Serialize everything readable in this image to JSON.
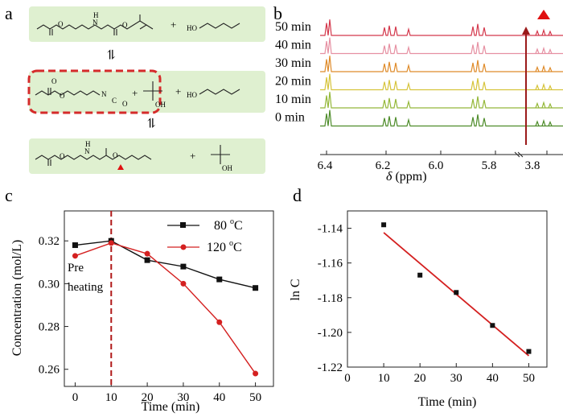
{
  "panels": {
    "a": {
      "letter": "a",
      "scheme_row1": {
        "reactant": "acrylate-ethyl-Boc-carbamate",
        "plus": "+",
        "alcohol": "HO"
      },
      "scheme_row2": {
        "isocyanate_N": "N",
        "isocyanate_C": "C",
        "isocyanate_O": "O",
        "plus1": "+",
        "tbutanol_OH": "OH",
        "plus2": "+",
        "alcohol": "HO"
      },
      "scheme_row3": {
        "product": "acrylate-ethyl-pentyl-carbamate",
        "plus": "+",
        "tbutanol_OH": "OH"
      },
      "equilibrium_symbol": "⇌",
      "colors": {
        "box_fill": "#dff0d0",
        "dash_box": "#d52b2b",
        "marker": "#e01010"
      }
    },
    "b": {
      "letter": "b",
      "traces": [
        "50 min",
        "40 min",
        "30 min",
        "20 min",
        "10 min",
        "0 min"
      ],
      "x_ticks": [
        "6.4",
        "6.2",
        "6.0",
        "5.8",
        "3.8"
      ],
      "x_label_symbol": "δ",
      "x_label_unit": " (ppm)",
      "colors": [
        "#d4384c",
        "#e690a2",
        "#df8b2a",
        "#d6c43c",
        "#95b83a",
        "#4e8c2a"
      ],
      "arrow_color": "#9b1a1a",
      "marker_color": "#e01010"
    }
  },
  "chart_data": [
    {
      "panel": "c",
      "type": "line",
      "xlabel": "Time (min)",
      "ylabel": "Concentration (mol/L)",
      "xlim": [
        -3,
        55
      ],
      "ylim": [
        0.252,
        0.334
      ],
      "x_ticks": [
        0,
        10,
        20,
        30,
        40,
        50
      ],
      "y_ticks": [
        0.26,
        0.28,
        0.3,
        0.32
      ],
      "y_tick_labels": [
        "0.26",
        "0.28",
        "0.30",
        "0.32"
      ],
      "series": [
        {
          "name": "80 °C",
          "legend_text": "80 ",
          "legend_deg": "o",
          "legend_unit": "C",
          "color": "#111111",
          "marker": "square",
          "x": [
            0,
            10,
            20,
            30,
            40,
            50
          ],
          "values": [
            0.318,
            0.32,
            0.311,
            0.308,
            0.302,
            0.298
          ]
        },
        {
          "name": "120 °C",
          "legend_text": "120 ",
          "legend_deg": "o",
          "legend_unit": "C",
          "color": "#d42020",
          "marker": "circle",
          "x": [
            0,
            10,
            20,
            30,
            40,
            50
          ],
          "values": [
            0.313,
            0.319,
            0.314,
            0.3,
            0.282,
            0.258
          ]
        }
      ],
      "annotation": {
        "line1": "Pre",
        "line2": "heating",
        "at_x": 10,
        "color": "#b01818"
      }
    },
    {
      "panel": "d",
      "type": "scatter",
      "xlabel": "Time (min)",
      "ylabel": "ln C",
      "xlim": [
        0,
        55
      ],
      "ylim": [
        -1.22,
        -1.13
      ],
      "x_ticks": [
        0,
        10,
        20,
        30,
        40,
        50
      ],
      "y_ticks": [
        -1.14,
        -1.16,
        -1.18,
        -1.2,
        -1.22
      ],
      "y_tick_labels": [
        "-1.14",
        "-1.16",
        "-1.18",
        "-1.20",
        "-1.22"
      ],
      "points": {
        "x": [
          10,
          20,
          30,
          40,
          50
        ],
        "y": [
          -1.138,
          -1.167,
          -1.177,
          -1.196,
          -1.211
        ]
      },
      "fit": {
        "x": [
          10,
          50
        ],
        "y": [
          -1.1425,
          -1.2135
        ],
        "color": "#d42020"
      }
    }
  ],
  "labels": {
    "c": "c",
    "d": "d"
  }
}
